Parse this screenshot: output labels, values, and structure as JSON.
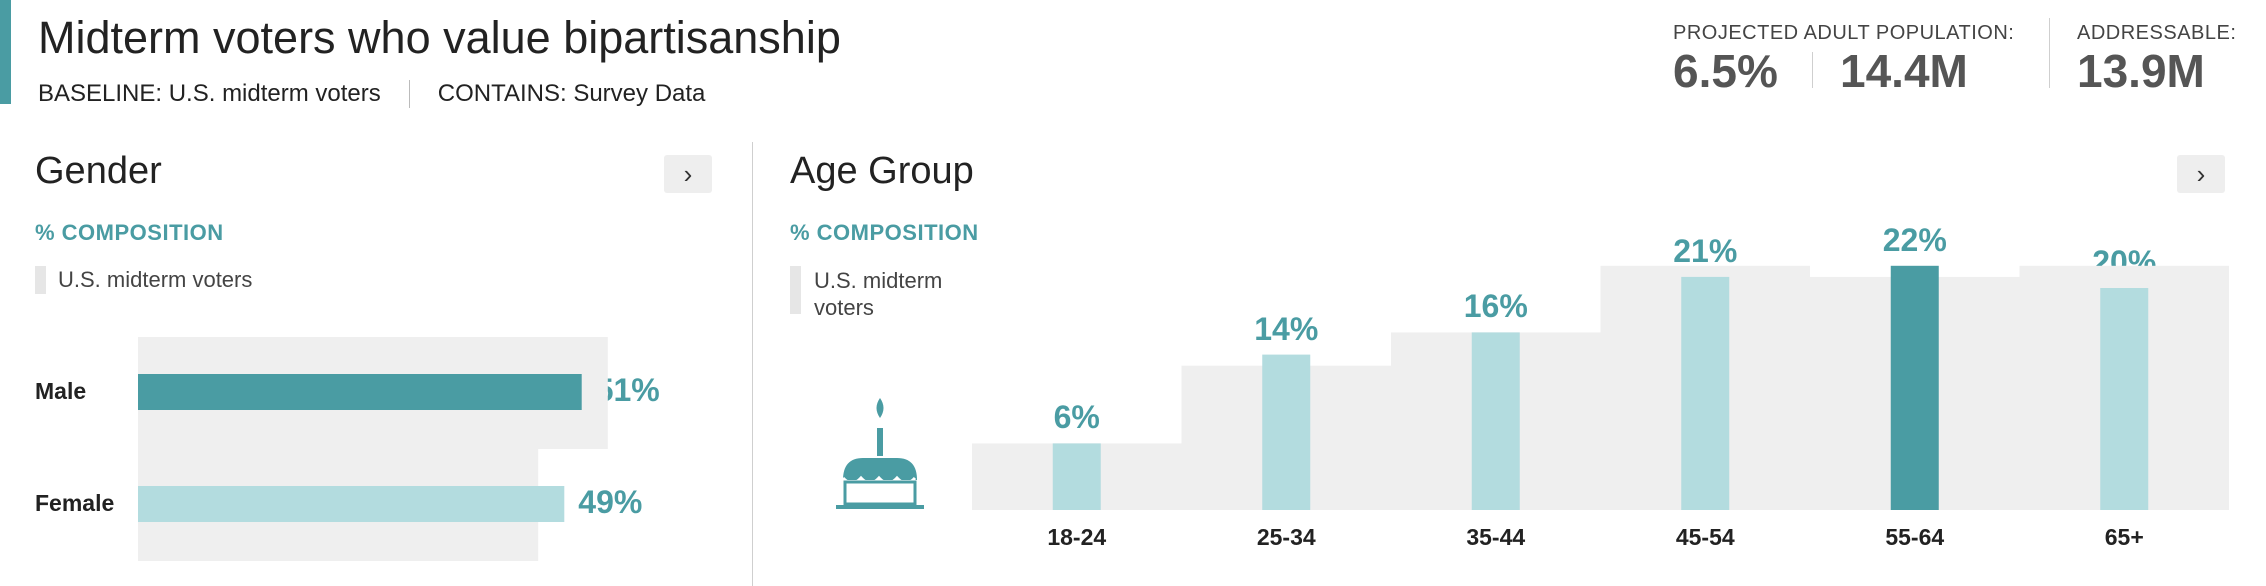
{
  "header": {
    "title": "Midterm voters who value bipartisanship",
    "baseline": "BASELINE: U.S. midterm voters",
    "contains": "CONTAINS: Survey Data",
    "projected_label": "PROJECTED ADULT POPULATION:",
    "projected_pct": "6.5%",
    "projected_count": "14.4M",
    "addressable_label": "ADDRESSABLE:",
    "addressable_value": "13.9M"
  },
  "colors": {
    "accent": "#4a9ca3",
    "light": "#b3dcdf",
    "baseline_bg": "#efefef"
  },
  "chart_data": [
    {
      "type": "bar",
      "orientation": "horizontal",
      "title": "Gender",
      "subtitle": "% COMPOSITION",
      "legend": "U.S. midterm voters",
      "categories": [
        "Male",
        "Female"
      ],
      "series": [
        {
          "name": "",
          "values": [
            51,
            49
          ],
          "labels": [
            "51%",
            "49%"
          ]
        }
      ],
      "baseline_values": [
        54,
        46
      ],
      "highlight": "Male",
      "xlim": [
        0,
        60
      ]
    },
    {
      "type": "bar",
      "orientation": "vertical",
      "title": "Age Group",
      "subtitle": "% COMPOSITION",
      "legend": "U.S. midterm voters",
      "categories": [
        "18-24",
        "25-34",
        "35-44",
        "45-54",
        "55-64",
        "65+"
      ],
      "series": [
        {
          "name": "",
          "values": [
            6,
            14,
            16,
            21,
            22,
            20
          ],
          "labels": [
            "6%",
            "14%",
            "16%",
            "21%",
            "22%",
            "20%"
          ]
        }
      ],
      "baseline_values": [
        6,
        13,
        16,
        22,
        21,
        22
      ],
      "highlight": "55-64",
      "icon": "birthday-cake-icon",
      "ylim": [
        0,
        22
      ]
    }
  ]
}
